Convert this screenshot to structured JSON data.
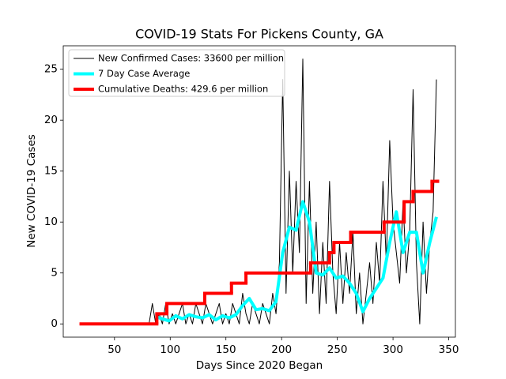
{
  "chart_data": {
    "type": "line",
    "title": "COVID-19 Stats For Pickens County, GA",
    "x_label": "Days Since 2020 Began",
    "y_label": "New COVID-19 Cases",
    "xlim": [
      4,
      356
    ],
    "ylim": [
      -1.3,
      27.3
    ],
    "xticks": [
      50,
      100,
      150,
      200,
      250,
      300,
      350
    ],
    "yticks": [
      0,
      5,
      10,
      15,
      20,
      25
    ],
    "legend": "upper left",
    "series": [
      {
        "name": "New Confirmed Cases: 33600 per million",
        "color": "#000000",
        "linewidth": 1,
        "x": [
          81,
          84,
          87,
          90,
          93,
          96,
          99,
          102,
          105,
          108,
          111,
          114,
          117,
          120,
          123,
          126,
          129,
          132,
          135,
          138,
          141,
          144,
          147,
          150,
          153,
          156,
          159,
          162,
          165,
          168,
          171,
          174,
          177,
          180,
          183,
          186,
          189,
          192,
          195,
          198,
          201,
          204,
          207,
          210,
          213,
          216,
          219,
          222,
          225,
          228,
          231,
          234,
          237,
          240,
          243,
          246,
          249,
          252,
          255,
          258,
          261,
          264,
          267,
          270,
          273,
          276,
          279,
          282,
          285,
          288,
          291,
          294,
          297,
          300,
          303,
          306,
          309,
          312,
          315,
          318,
          321,
          324,
          327,
          330,
          333,
          336,
          339
        ],
        "values": [
          0,
          2,
          0,
          1,
          0,
          2,
          0,
          1,
          0,
          1,
          2,
          0,
          1,
          0,
          2,
          1,
          0,
          2,
          1,
          0,
          1,
          2,
          0,
          1,
          0,
          2,
          1,
          0,
          3,
          1,
          0,
          2,
          1,
          0,
          2,
          1,
          0,
          3,
          1,
          6,
          24,
          3,
          15,
          5,
          14,
          7,
          26,
          2,
          14,
          3,
          10,
          1,
          8,
          2,
          14,
          5,
          1,
          8,
          2,
          7,
          3,
          9,
          1,
          5,
          0,
          3,
          6,
          2,
          8,
          4,
          14,
          6,
          18,
          10,
          7,
          4,
          12,
          5,
          9,
          23,
          6,
          0,
          10,
          3,
          8,
          11,
          24
        ]
      },
      {
        "name": "7 Day Case Average",
        "color": "#00ffff",
        "linewidth": 4,
        "x": [
          87,
          93,
          99,
          105,
          111,
          117,
          123,
          129,
          135,
          141,
          147,
          153,
          159,
          165,
          171,
          177,
          183,
          189,
          195,
          201,
          207,
          213,
          219,
          225,
          231,
          237,
          243,
          249,
          255,
          261,
          267,
          273,
          279,
          285,
          291,
          297,
          303,
          309,
          315,
          321,
          327,
          333,
          339
        ],
        "values": [
          0.7,
          0.5,
          0.3,
          0.8,
          0.5,
          0.9,
          0.7,
          0.6,
          0.9,
          0.4,
          0.8,
          0.6,
          0.9,
          1.8,
          2.5,
          1.4,
          1.5,
          1.3,
          2.2,
          7,
          9.5,
          9.2,
          12,
          10,
          5,
          4.8,
          5.5,
          4.5,
          4.7,
          4,
          3,
          1.2,
          2.5,
          3.5,
          4.5,
          8,
          11,
          7,
          9,
          9,
          5,
          8,
          10.5
        ]
      },
      {
        "name": "Cumulative Deaths: 429.6 per million",
        "color": "#ff0000",
        "linewidth": 4,
        "drawstyle": "steps-post",
        "x": [
          20,
          88,
          97,
          131,
          155,
          168,
          226,
          243,
          247,
          262,
          292,
          310,
          318,
          335,
          340
        ],
        "values": [
          0,
          1,
          2,
          3,
          4,
          5,
          6,
          7,
          8,
          9,
          10,
          12,
          13,
          14,
          14
        ]
      }
    ]
  }
}
